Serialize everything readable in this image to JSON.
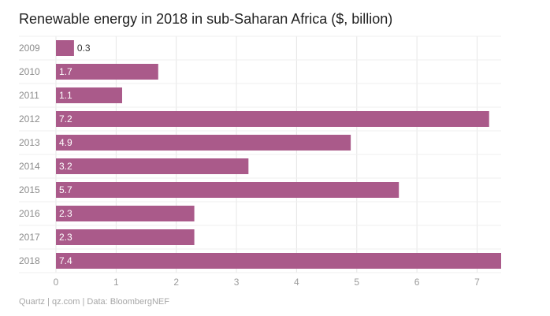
{
  "chart_data": {
    "type": "bar",
    "orientation": "horizontal",
    "title": "Renewable energy in 2018 in sub-Saharan Africa ($, billion)",
    "source": "Quartz | qz.com | Data: BloombergNEF",
    "categories": [
      "2009",
      "2010",
      "2011",
      "2012",
      "2013",
      "2014",
      "2015",
      "2016",
      "2017",
      "2018"
    ],
    "values": [
      0.3,
      1.7,
      1.1,
      7.2,
      4.9,
      3.2,
      5.7,
      2.3,
      2.3,
      7.4
    ],
    "value_labels": [
      "0.3",
      "1.7",
      "1.1",
      "7.2",
      "4.9",
      "3.2",
      "5.7",
      "2.3",
      "2.3",
      "7.4"
    ],
    "xlim": [
      0,
      7.4
    ],
    "xticks": [
      0,
      1,
      2,
      3,
      4,
      5,
      6,
      7
    ],
    "xlabel": "",
    "ylabel": "",
    "grid": true,
    "colors": {
      "bar": "#aa5a8a",
      "label_inside": "#ffffff",
      "label_outside": "#333333",
      "grid": "#e6e6e6"
    }
  }
}
